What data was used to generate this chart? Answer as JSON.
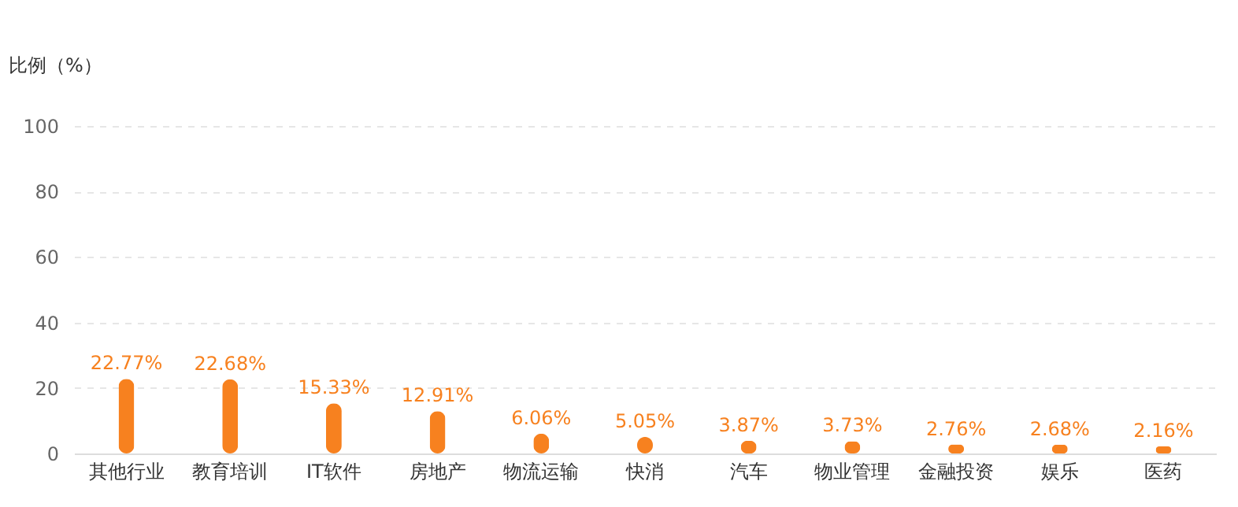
{
  "chart_data": {
    "type": "bar",
    "ylabel": "比例（%）",
    "categories": [
      "其他行业",
      "教育培训",
      "IT软件",
      "房地产",
      "物流运输",
      "快消",
      "汽车",
      "物业管理",
      "金融投资",
      "娱乐",
      "医药"
    ],
    "values": [
      22.77,
      22.68,
      15.33,
      12.91,
      6.06,
      5.05,
      3.87,
      3.73,
      2.76,
      2.68,
      2.16
    ],
    "value_labels": [
      "22.77%",
      "22.68%",
      "15.33%",
      "12.91%",
      "6.06%",
      "5.05%",
      "3.87%",
      "3.73%",
      "2.76%",
      "2.68%",
      "2.16%"
    ],
    "color": "#f7811f",
    "ylim": [
      0,
      100
    ],
    "yticks": [
      0,
      20,
      40,
      60,
      80,
      100
    ],
    "grid": "y"
  }
}
